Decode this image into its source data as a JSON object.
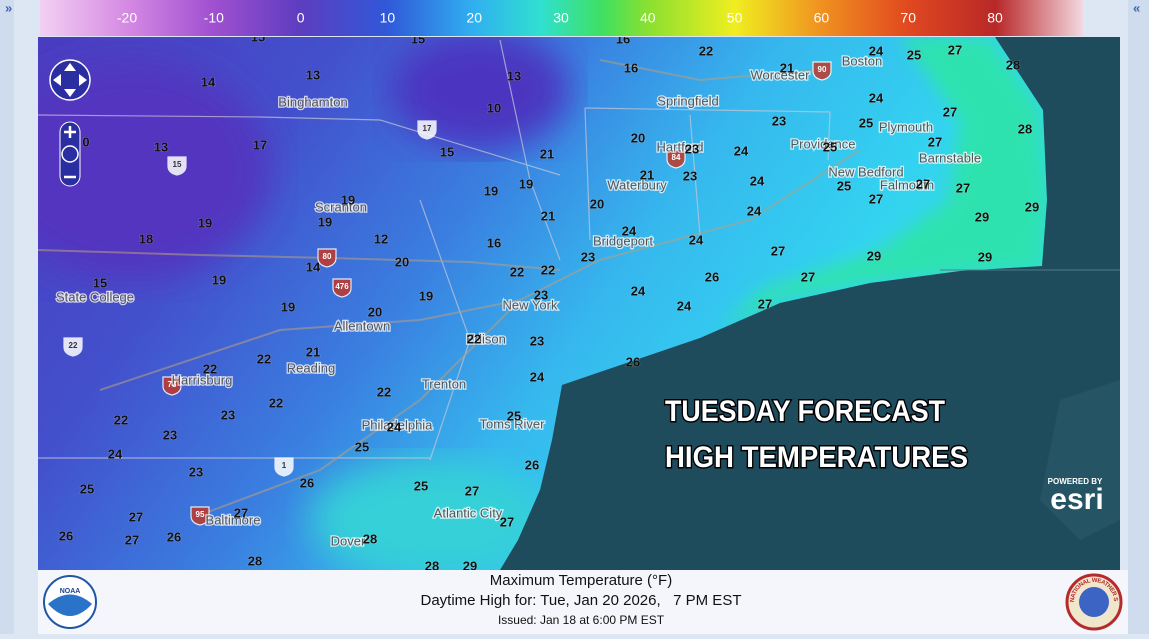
{
  "nav": {
    "left": "»",
    "right": "«"
  },
  "color_scale": {
    "labels": [
      -20,
      -10,
      0,
      10,
      20,
      30,
      40,
      50,
      60,
      70,
      80
    ]
  },
  "map": {
    "overlay_title": [
      "TUESDAY FORECAST",
      "HIGH TEMPERATURES"
    ],
    "attribution": {
      "powered_by": "POWERED BY",
      "brand": "esri"
    },
    "temperatures": [
      15,
      15,
      16,
      22,
      24,
      25,
      27,
      28,
      14,
      13,
      13,
      16,
      21,
      10,
      24,
      23,
      25,
      27,
      28,
      0,
      13,
      17,
      15,
      21,
      20,
      23,
      24,
      25,
      27,
      21,
      23,
      24,
      25,
      27,
      27,
      19,
      19,
      19,
      20,
      24,
      27,
      29,
      29,
      18,
      19,
      19,
      12,
      21,
      24,
      24,
      27,
      29,
      29,
      16,
      15,
      19,
      14,
      20,
      22,
      22,
      23,
      26,
      27,
      19,
      19,
      20,
      23,
      24,
      24,
      27,
      21,
      22,
      22,
      23,
      26,
      22,
      22,
      24,
      22,
      23,
      22,
      23,
      25,
      24,
      25,
      24,
      23,
      26,
      26,
      25,
      25,
      27,
      27,
      27,
      27,
      26,
      27,
      26,
      28,
      28,
      28,
      29
    ],
    "cities": [
      "Binghamton",
      "Scranton",
      "State College",
      "Allentown",
      "Reading",
      "Harrisburg",
      "Philadelphia",
      "Trenton",
      "Edison",
      "New York",
      "Toms River",
      "Atlantic City",
      "Baltimore",
      "Dover",
      "Hartford",
      "Waterbury",
      "Bridgeport",
      "Springfield",
      "Worcester",
      "Boston",
      "Providence",
      "Plymouth",
      "Barnstable",
      "New Bedford",
      "Falmouth"
    ],
    "highways": [
      "15",
      "17",
      "80",
      "476",
      "22",
      "78",
      "1",
      "95",
      "90",
      "84"
    ]
  },
  "footer": {
    "title": "Maximum Temperature (°F)",
    "valid": "Daytime High for: Tue, Jan 20 2026,   7 PM EST",
    "issued": "Issued: Jan 18 at 6:00 PM EST",
    "left_logo": "NOAA",
    "right_logo": "NATIONAL WEATHER SERVICE"
  }
}
